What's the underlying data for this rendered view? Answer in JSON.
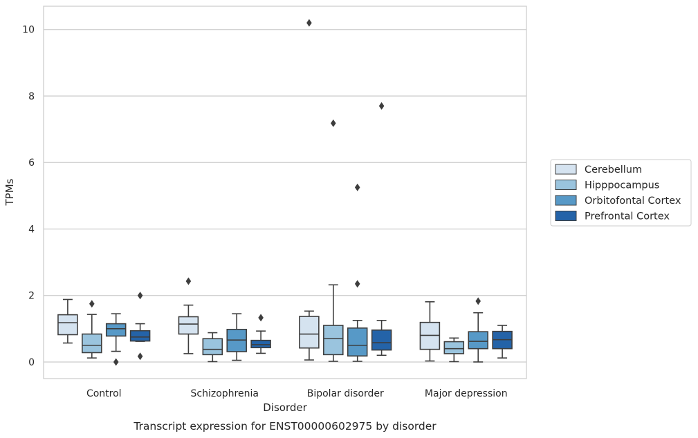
{
  "chart_data": {
    "type": "box",
    "title": "",
    "caption": "Transcript expression for ENST00000602975 by disorder",
    "xlabel": "Disorder",
    "ylabel": "TPMs",
    "ylim": [
      -0.5,
      10.7
    ],
    "yticks": [
      "0",
      "2",
      "4",
      "6",
      "8",
      "10"
    ],
    "grid": "horizontal",
    "legend_position": "right",
    "categories": [
      "Control",
      "Schizophrenia",
      "Bipolar disorder",
      "Major depression"
    ],
    "series": [
      {
        "name": "Cerebellum",
        "color": "#d5e3f0",
        "boxes": [
          {
            "whislo": 0.57,
            "q1": 0.82,
            "med": 1.18,
            "q3": 1.42,
            "whishi": 1.88,
            "fliers": []
          },
          {
            "whislo": 0.25,
            "q1": 0.84,
            "med": 1.14,
            "q3": 1.36,
            "whishi": 1.71,
            "fliers": [
              2.43
            ]
          },
          {
            "whislo": 0.06,
            "q1": 0.42,
            "med": 0.84,
            "q3": 1.37,
            "whishi": 1.53,
            "fliers": [
              10.2
            ]
          },
          {
            "whislo": 0.03,
            "q1": 0.38,
            "med": 0.8,
            "q3": 1.19,
            "whishi": 1.81,
            "fliers": []
          }
        ]
      },
      {
        "name": "Hipppocampus",
        "color": "#9ac4de",
        "boxes": [
          {
            "whislo": 0.12,
            "q1": 0.28,
            "med": 0.5,
            "q3": 0.84,
            "whishi": 1.43,
            "fliers": [
              1.75
            ]
          },
          {
            "whislo": 0.01,
            "q1": 0.22,
            "med": 0.38,
            "q3": 0.7,
            "whishi": 0.88,
            "fliers": []
          },
          {
            "whislo": 0.02,
            "q1": 0.22,
            "med": 0.7,
            "q3": 1.1,
            "whishi": 2.32,
            "fliers": [
              7.18
            ]
          },
          {
            "whislo": 0.01,
            "q1": 0.25,
            "med": 0.4,
            "q3": 0.61,
            "whishi": 0.72,
            "fliers": []
          }
        ]
      },
      {
        "name": "Orbitofontal Cortex",
        "color": "#5799c7",
        "boxes": [
          {
            "whislo": 0.32,
            "q1": 0.78,
            "med": 1.0,
            "q3": 1.15,
            "whishi": 1.45,
            "fliers": [
              0.0
            ]
          },
          {
            "whislo": 0.05,
            "q1": 0.31,
            "med": 0.66,
            "q3": 0.98,
            "whishi": 1.45,
            "fliers": []
          },
          {
            "whislo": 0.02,
            "q1": 0.18,
            "med": 0.5,
            "q3": 1.02,
            "whishi": 1.25,
            "fliers": [
              5.25,
              2.35
            ]
          },
          {
            "whislo": 0.0,
            "q1": 0.4,
            "med": 0.62,
            "q3": 0.91,
            "whishi": 1.48,
            "fliers": [
              1.83
            ]
          }
        ]
      },
      {
        "name": "Prefrontal Cortex",
        "color": "#2463a8",
        "boxes": [
          {
            "whislo": 0.62,
            "q1": 0.63,
            "med": 0.75,
            "q3": 0.94,
            "whishi": 1.15,
            "fliers": [
              2.0,
              0.17
            ]
          },
          {
            "whislo": 0.26,
            "q1": 0.43,
            "med": 0.52,
            "q3": 0.65,
            "whishi": 0.93,
            "fliers": [
              1.33
            ]
          },
          {
            "whislo": 0.2,
            "q1": 0.36,
            "med": 0.58,
            "q3": 0.96,
            "whishi": 1.25,
            "fliers": [
              7.7
            ]
          },
          {
            "whislo": 0.12,
            "q1": 0.4,
            "med": 0.67,
            "q3": 0.92,
            "whishi": 1.1,
            "fliers": []
          }
        ]
      }
    ]
  }
}
